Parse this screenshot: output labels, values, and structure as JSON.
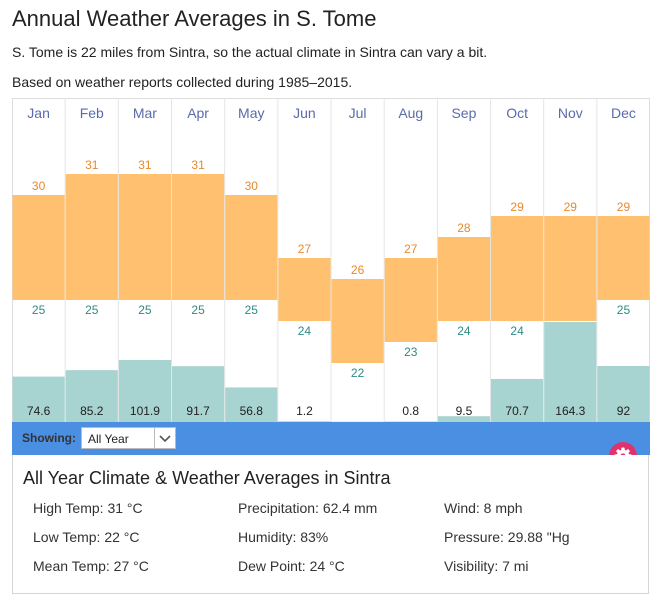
{
  "header": {
    "title": "Annual Weather Averages in S. Tome",
    "line1": "S. Tome is 22 miles from Sintra, so the actual climate in Sintra can vary a bit.",
    "line2": "Based on weather reports collected during 1985–2015."
  },
  "chart_data": {
    "type": "bar",
    "title": "Annual Weather Averages in S. Tome",
    "categories": [
      "Jan",
      "Feb",
      "Mar",
      "Apr",
      "May",
      "Jun",
      "Jul",
      "Aug",
      "Sep",
      "Oct",
      "Nov",
      "Dec"
    ],
    "series": [
      {
        "name": "High Temp (°C)",
        "values": [
          30,
          31,
          31,
          31,
          30,
          27,
          26,
          27,
          28,
          29,
          29,
          29
        ]
      },
      {
        "name": "Low Temp (°C)",
        "values": [
          25,
          25,
          25,
          25,
          25,
          24,
          22,
          23,
          24,
          24,
          24,
          25
        ]
      },
      {
        "name": "Precipitation (mm)",
        "values": [
          74.6,
          85.2,
          101.9,
          91.7,
          56.8,
          1.2,
          0,
          0.8,
          9.5,
          70.7,
          164.3,
          92
        ]
      }
    ],
    "precip_labels": [
      "74.6",
      "85.2",
      "101.9",
      "91.7",
      "56.8",
      "1.2",
      "",
      "0.8",
      "9.5",
      "70.7",
      "164.3",
      "92"
    ],
    "colors": {
      "temp": "#ffc070",
      "high_label": "#e8892b",
      "low_label": "#2e8b85",
      "precip": "#a7d3d0",
      "month": "#5a6bab"
    }
  },
  "controls": {
    "showing_label": "Showing:",
    "selected": "All Year"
  },
  "summary": {
    "title": "All Year Climate & Weather Averages in Sintra",
    "col1": [
      "High Temp: 31 °C",
      "Low Temp: 22 °C",
      "Mean Temp: 27 °C"
    ],
    "col2": [
      "Precipitation: 62.4 mm",
      "Humidity: 83%",
      "Dew Point: 24 °C"
    ],
    "col3": [
      "Wind: 8 mph",
      "Pressure: 29.88 \"Hg",
      "Visibility: 7 mi"
    ]
  },
  "icons": {
    "gear": "gear-icon",
    "dropdown": "chevron-down-icon"
  }
}
